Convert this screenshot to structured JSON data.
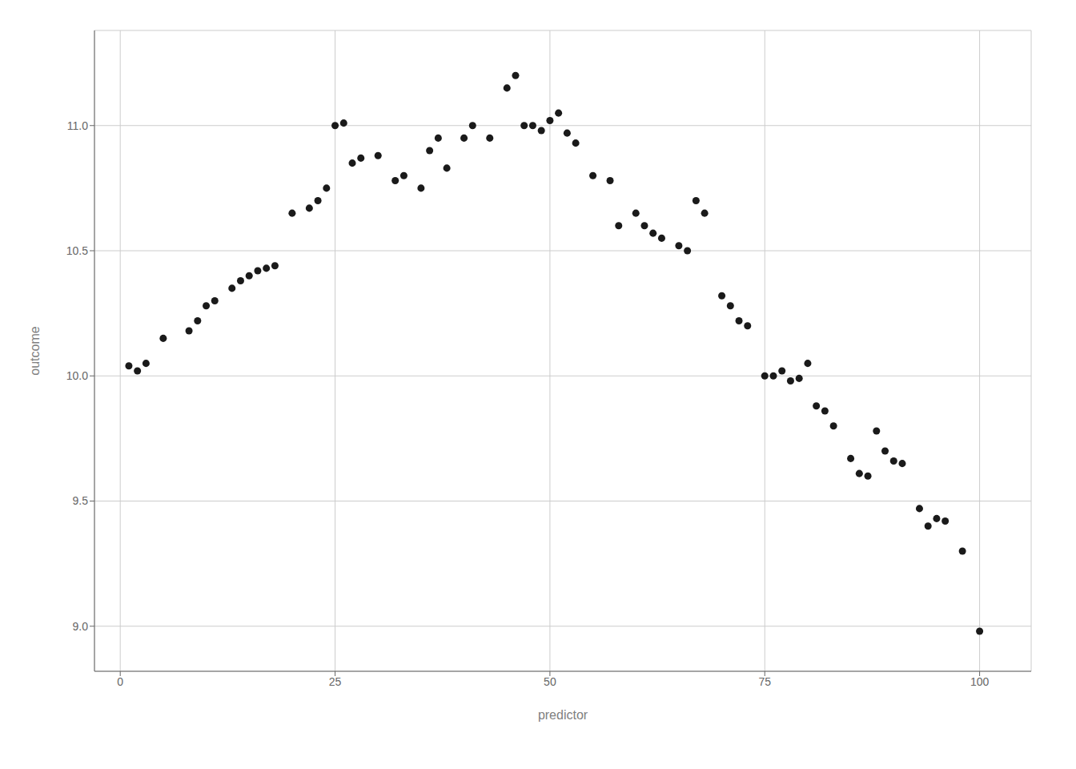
{
  "chart_data": {
    "type": "scatter",
    "x": [
      1,
      2,
      3,
      5,
      8,
      9,
      10,
      11,
      13,
      14,
      15,
      16,
      17,
      18,
      20,
      22,
      23,
      24,
      25,
      26,
      27,
      28,
      30,
      32,
      33,
      35,
      36,
      37,
      38,
      40,
      41,
      43,
      45,
      46,
      47,
      48,
      49,
      50,
      51,
      52,
      53,
      55,
      57,
      58,
      60,
      61,
      62,
      63,
      65,
      66,
      67,
      68,
      70,
      71,
      72,
      73,
      75,
      76,
      77,
      78,
      79,
      80,
      81,
      82,
      83,
      85,
      86,
      87,
      88,
      89,
      90,
      91,
      93,
      94,
      95,
      96,
      98,
      100
    ],
    "values": [
      10.04,
      10.02,
      10.05,
      10.15,
      10.18,
      10.22,
      10.28,
      10.3,
      10.35,
      10.38,
      10.4,
      10.42,
      10.43,
      10.44,
      10.65,
      10.67,
      10.7,
      10.75,
      11.0,
      11.01,
      10.85,
      10.87,
      10.88,
      10.78,
      10.8,
      10.75,
      10.9,
      10.95,
      10.83,
      10.95,
      11.0,
      10.95,
      11.15,
      11.2,
      11.0,
      11.0,
      10.98,
      11.02,
      11.05,
      10.97,
      10.93,
      10.8,
      10.78,
      10.6,
      10.65,
      10.6,
      10.57,
      10.55,
      10.52,
      10.5,
      10.7,
      10.65,
      10.32,
      10.28,
      10.22,
      10.2,
      10.0,
      10.0,
      10.02,
      9.98,
      9.99,
      10.05,
      9.88,
      9.86,
      9.8,
      9.67,
      9.61,
      9.6,
      9.78,
      9.7,
      9.66,
      9.65,
      9.47,
      9.4,
      9.43,
      9.42,
      9.3,
      8.98
    ],
    "xlabel": "predictor",
    "ylabel": "outcome",
    "xlim": [
      -3,
      106
    ],
    "ylim": [
      8.82,
      11.38
    ],
    "xticks": [
      0,
      25,
      50,
      75,
      100
    ],
    "yticks": [
      {
        "value": 9.0,
        "label": "9.0"
      },
      {
        "value": 9.5,
        "label": "9.5"
      },
      {
        "value": 10.0,
        "label": "10.0"
      },
      {
        "value": 10.5,
        "label": "10.5"
      },
      {
        "value": 11.0,
        "label": "11.0"
      }
    ],
    "color": "#1a1a1a",
    "grid": true
  }
}
